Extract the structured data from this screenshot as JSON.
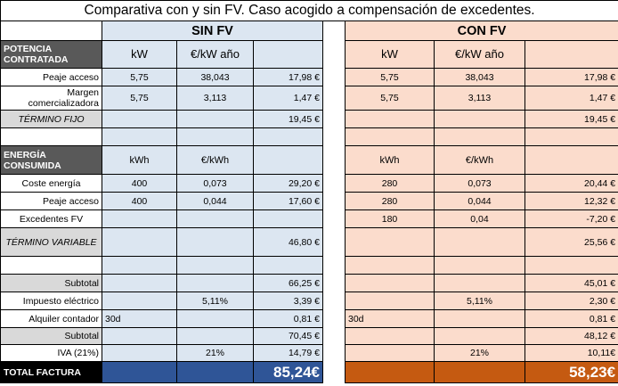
{
  "title": "Comparativa con y sin FV. Caso acogido a compensación de excedentes.",
  "sin_header": "SIN FV",
  "con_header": "CON FV",
  "potencia": {
    "label": "POTENCIA CONTRATADA",
    "unit_kw": "kW",
    "unit_kw_ano": "€/kW año",
    "rows": [
      {
        "label": "Peaje acceso",
        "sin": [
          "5,75",
          "38,043",
          "17,98 €"
        ],
        "con": [
          "5,75",
          "38,043",
          "17,98 €"
        ]
      },
      {
        "label": "Margen comercializadora",
        "sin": [
          "5,75",
          "3,113",
          "1,47 €"
        ],
        "con": [
          "5,75",
          "3,113",
          "1,47 €"
        ]
      }
    ],
    "termino_fijo_label": "TÉRMINO FIJO",
    "termino_fijo_sin": "19,45 €",
    "termino_fijo_con": "19,45 €"
  },
  "energia": {
    "label": "ENERGÍA CONSUMIDA",
    "unit_kwh": "kWh",
    "unit_eur_kwh": "€/kWh",
    "rows": [
      {
        "label": "Coste energía",
        "sin": [
          "400",
          "0,073",
          "29,20 €"
        ],
        "con": [
          "280",
          "0,073",
          "20,44 €"
        ]
      },
      {
        "label": "Peaje acceso",
        "sin": [
          "400",
          "0,044",
          "17,60 €"
        ],
        "con": [
          "280",
          "0,044",
          "12,32 €"
        ]
      },
      {
        "label": "Excedentes FV",
        "sin": [
          "",
          "",
          ""
        ],
        "con": [
          "180",
          "0,04",
          "-7,20 €"
        ]
      }
    ],
    "termino_variable_label": "TÉRMINO VARIABLE",
    "termino_variable_sin": "46,80 €",
    "termino_variable_con": "25,56 €"
  },
  "subtotal1": {
    "label": "Subtotal",
    "sin": "66,25 €",
    "con": "45,01 €"
  },
  "impuesto": {
    "label": "Impuesto eléctrico",
    "sin_rate": "5,11%",
    "sin": "3,39 €",
    "con_rate": "5,11%",
    "con": "2,30 €"
  },
  "alquiler": {
    "label": "Alquiler contador",
    "sin_days": "30d",
    "sin": "0,81 €",
    "con_days": "30d",
    "con": "0,81 €"
  },
  "subtotal2": {
    "label": "Subtotal",
    "sin": "70,45 €",
    "con": "48,12 €"
  },
  "iva": {
    "label": "IVA (21%)",
    "sin_rate": "21%",
    "sin": "14,79 €",
    "con_rate": "21%",
    "con": "10,11€"
  },
  "total": {
    "label": "TOTAL FACTURA",
    "sin": "85,24€",
    "con": "58,23€"
  }
}
